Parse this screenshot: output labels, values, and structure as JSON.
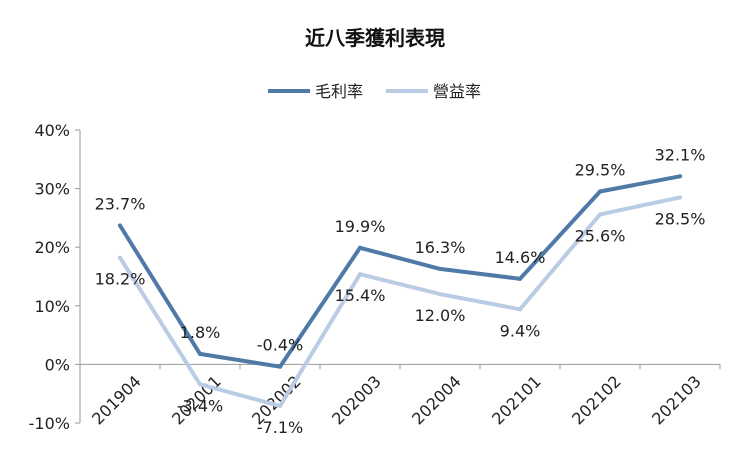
{
  "chart_data": {
    "type": "line",
    "title": "近八季獲利表現",
    "categories": [
      "201904",
      "202001",
      "202002",
      "202003",
      "202004",
      "202101",
      "202102",
      "202103"
    ],
    "series": [
      {
        "name": "毛利率",
        "color": "#4f7aa8",
        "values": [
          23.7,
          1.8,
          -0.4,
          19.9,
          16.3,
          14.6,
          29.5,
          32.1
        ],
        "labels": [
          "23.7%",
          "1.8%",
          "-0.4%",
          "19.9%",
          "16.3%",
          "14.6%",
          "29.5%",
          "32.1%"
        ]
      },
      {
        "name": "營益率",
        "color": "#b9cce4",
        "values": [
          18.2,
          -3.4,
          -7.1,
          15.4,
          12.0,
          9.4,
          25.6,
          28.5
        ],
        "labels": [
          "18.2%",
          "-3.4%",
          "-7.1%",
          "15.4%",
          "12.0%",
          "9.4%",
          "25.6%",
          "28.5%"
        ]
      }
    ],
    "ylim": [
      -10,
      40
    ],
    "yticks": [
      "-10%",
      "0%",
      "10%",
      "20%",
      "30%",
      "40%"
    ],
    "ytick_values": [
      -10,
      0,
      10,
      20,
      30,
      40
    ],
    "legend_position": "top",
    "grid": false
  }
}
